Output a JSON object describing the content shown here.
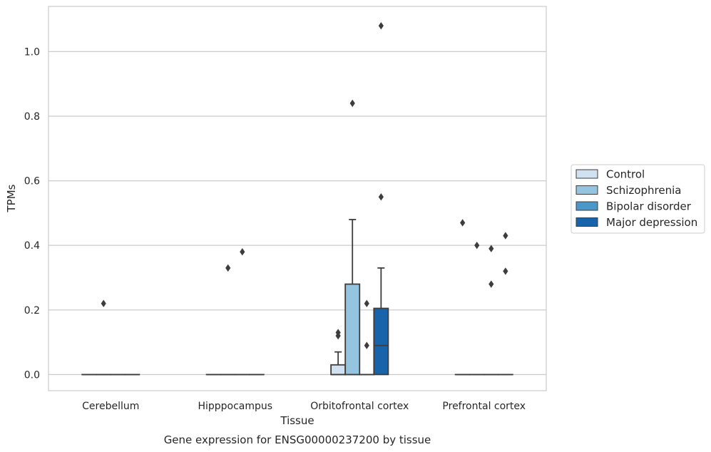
{
  "caption": "Gene expression for ENSG00000237200 by tissue",
  "chart_data": {
    "type": "box",
    "xlabel": "Tissue",
    "ylabel": "TPMs",
    "ylim": [
      -0.05,
      1.14
    ],
    "yticks": [
      0.0,
      0.2,
      0.4,
      0.6,
      0.8,
      1.0
    ],
    "ytick_labels": [
      "0.0",
      "0.2",
      "0.4",
      "0.6",
      "0.8",
      "1.0"
    ],
    "grid": "horizontal",
    "legend_position": "right",
    "categories": [
      "Cerebellum",
      "Hipppocampus",
      "Orbitofrontal cortex",
      "Prefrontal cortex"
    ],
    "series": [
      {
        "name": "Control",
        "color": "#d0e1f2",
        "boxes": [
          {
            "category": "Cerebellum",
            "q1": 0,
            "median": 0,
            "q3": 0,
            "whislo": 0,
            "whishi": 0,
            "fliers": []
          },
          {
            "category": "Hipppocampus",
            "q1": 0,
            "median": 0,
            "q3": 0,
            "whislo": 0,
            "whishi": 0,
            "fliers": []
          },
          {
            "category": "Orbitofrontal cortex",
            "q1": 0,
            "median": 0,
            "q3": 0.03,
            "whislo": 0,
            "whishi": 0.07,
            "fliers": [
              0.12,
              0.13
            ]
          },
          {
            "category": "Prefrontal cortex",
            "q1": 0,
            "median": 0,
            "q3": 0,
            "whislo": 0,
            "whishi": 0,
            "fliers": [
              0.47
            ]
          }
        ]
      },
      {
        "name": "Schizophrenia",
        "color": "#94c4df",
        "boxes": [
          {
            "category": "Cerebellum",
            "q1": 0,
            "median": 0,
            "q3": 0,
            "whislo": 0,
            "whishi": 0,
            "fliers": [
              0.22
            ]
          },
          {
            "category": "Hipppocampus",
            "q1": 0,
            "median": 0,
            "q3": 0,
            "whislo": 0,
            "whishi": 0,
            "fliers": [
              0.33
            ]
          },
          {
            "category": "Orbitofrontal cortex",
            "q1": 0,
            "median": 0,
            "q3": 0.28,
            "whislo": 0,
            "whishi": 0.48,
            "fliers": [
              0.84
            ]
          },
          {
            "category": "Prefrontal cortex",
            "q1": 0,
            "median": 0,
            "q3": 0,
            "whislo": 0,
            "whishi": 0,
            "fliers": [
              0.4
            ]
          }
        ]
      },
      {
        "name": "Bipolar disorder",
        "color": "#4a98c9",
        "boxes": [
          {
            "category": "Cerebellum",
            "q1": 0,
            "median": 0,
            "q3": 0,
            "whislo": 0,
            "whishi": 0,
            "fliers": []
          },
          {
            "category": "Hipppocampus",
            "q1": 0,
            "median": 0,
            "q3": 0,
            "whislo": 0,
            "whishi": 0,
            "fliers": [
              0.38
            ]
          },
          {
            "category": "Orbitofrontal cortex",
            "q1": 0,
            "median": 0,
            "q3": 0,
            "whislo": 0,
            "whishi": 0,
            "fliers": [
              0.09,
              0.22
            ]
          },
          {
            "category": "Prefrontal cortex",
            "q1": 0,
            "median": 0,
            "q3": 0,
            "whislo": 0,
            "whishi": 0,
            "fliers": [
              0.28,
              0.39
            ]
          }
        ]
      },
      {
        "name": "Major depression",
        "color": "#1764ab",
        "boxes": [
          {
            "category": "Cerebellum",
            "q1": 0,
            "median": 0,
            "q3": 0,
            "whislo": 0,
            "whishi": 0,
            "fliers": []
          },
          {
            "category": "Hipppocampus",
            "q1": 0,
            "median": 0,
            "q3": 0,
            "whislo": 0,
            "whishi": 0,
            "fliers": []
          },
          {
            "category": "Orbitofrontal cortex",
            "q1": 0,
            "median": 0.09,
            "q3": 0.205,
            "whislo": 0,
            "whishi": 0.33,
            "fliers": [
              0.55,
              1.08
            ]
          },
          {
            "category": "Prefrontal cortex",
            "q1": 0,
            "median": 0,
            "q3": 0,
            "whislo": 0,
            "whishi": 0,
            "fliers": [
              0.32,
              0.43
            ]
          }
        ]
      }
    ]
  }
}
